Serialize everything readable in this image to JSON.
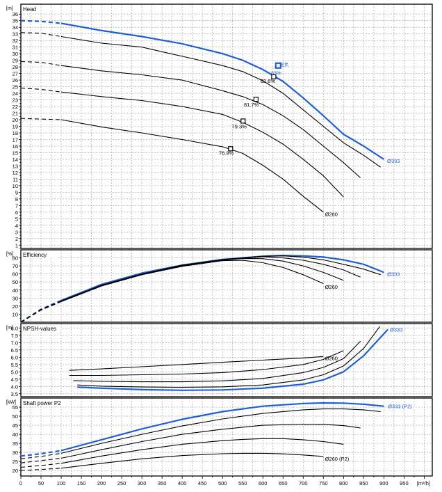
{
  "colors": {
    "highlight": "#1f5fd6",
    "other": "#000000",
    "grid": "#9a9a9a",
    "frame": "#000000"
  },
  "x_axis": {
    "unit": "[m³/h]",
    "min": 0,
    "max": 1020,
    "ticks": [
      0,
      50,
      100,
      150,
      200,
      250,
      300,
      350,
      400,
      450,
      500,
      550,
      600,
      650,
      700,
      750,
      800,
      850,
      900,
      950,
      1000
    ]
  },
  "chart_data": [
    {
      "type": "line",
      "title": "Head",
      "ylabel": "[m]",
      "ylim": [
        0.5,
        37.5
      ],
      "yticks": [
        1,
        2,
        3,
        4,
        5,
        6,
        7,
        8,
        9,
        10,
        11,
        12,
        13,
        14,
        15,
        16,
        17,
        18,
        19,
        20,
        21,
        22,
        23,
        24,
        25,
        26,
        27,
        28,
        29,
        30,
        31,
        32,
        33,
        34,
        35,
        36
      ],
      "grid": true,
      "series": [
        {
          "name": "Ø333",
          "highlight": true,
          "dashed": [
            [
              0,
              35
            ],
            [
              50,
              34.9
            ],
            [
              100,
              34.6
            ]
          ],
          "x": [
            100,
            200,
            300,
            400,
            500,
            550,
            600,
            650,
            700,
            750,
            800,
            850,
            900
          ],
          "y": [
            34.6,
            33.5,
            32.6,
            31.5,
            30,
            29,
            27.6,
            25.8,
            23.3,
            20.6,
            17.8,
            16,
            14
          ]
        },
        {
          "dashed": [
            [
              0,
              33.2
            ],
            [
              50,
              33.1
            ],
            [
              100,
              32.6
            ]
          ],
          "x": [
            100,
            200,
            300,
            400,
            500,
            550,
            600,
            650,
            700,
            750,
            800,
            850,
            892
          ],
          "y": [
            32.6,
            31.6,
            31,
            29.6,
            28.2,
            27.3,
            25.9,
            24,
            21.5,
            19,
            16.5,
            14.6,
            12.8
          ]
        },
        {
          "dashed": [
            [
              0,
              28.8
            ],
            [
              50,
              28.7
            ],
            [
              100,
              28.2
            ]
          ],
          "x": [
            100,
            200,
            300,
            400,
            500,
            550,
            600,
            650,
            700,
            750,
            800,
            842
          ],
          "y": [
            28.2,
            27.4,
            26.8,
            26,
            24.4,
            23.5,
            22.3,
            20.6,
            18.5,
            16,
            13.5,
            11.2
          ]
        },
        {
          "dashed": [
            [
              0,
              24.8
            ],
            [
              50,
              24.6
            ],
            [
              100,
              24.2
            ]
          ],
          "x": [
            100,
            200,
            300,
            400,
            500,
            550,
            600,
            650,
            700,
            750,
            800
          ],
          "y": [
            24.2,
            23.5,
            22.9,
            22,
            20.8,
            19.6,
            18.1,
            16.3,
            14,
            11.5,
            8.3
          ]
        },
        {
          "name": "Ø260",
          "dashed": [
            [
              0,
              20.2
            ],
            [
              50,
              20.1
            ],
            [
              100,
              20
            ]
          ],
          "x": [
            100,
            200,
            300,
            400,
            500,
            550,
            600,
            650,
            700,
            750
          ],
          "y": [
            20,
            18.9,
            18,
            17,
            15.9,
            14.9,
            13.1,
            11,
            8.4,
            6
          ]
        }
      ],
      "markers": [
        {
          "x": 638,
          "y": 28.2,
          "highlight": true
        },
        {
          "x": 627,
          "y": 26.5
        },
        {
          "x": 583,
          "y": 23.1
        },
        {
          "x": 551,
          "y": 19.8
        },
        {
          "x": 520,
          "y": 15.6
        }
      ],
      "annotations": [
        {
          "text": "Eff.",
          "x": 646,
          "y": 28.4,
          "highlight": true
        },
        {
          "text": "83%",
          "x": 620,
          "y": 27.1,
          "highlight": true
        },
        {
          "text": "82.6%",
          "x": 594,
          "y": 25.9
        },
        {
          "text": "81.7%",
          "x": 553,
          "y": 22.3
        },
        {
          "text": "79.3%",
          "x": 523,
          "y": 19
        },
        {
          "text": "76.9%",
          "x": 491,
          "y": 15
        },
        {
          "text": "Ø333",
          "x": 908,
          "y": 13.8,
          "highlight": true
        },
        {
          "text": "Ø260",
          "x": 754,
          "y": 5.7
        }
      ]
    },
    {
      "type": "line",
      "title": "Efficiency",
      "ylabel": "[%]",
      "ylim": [
        0,
        90
      ],
      "yticks": [
        10,
        20,
        30,
        40,
        50,
        60,
        70,
        80
      ],
      "grid": true,
      "series": [
        {
          "name": "Ø333",
          "highlight": true,
          "dashed": [
            [
              0,
              0
            ],
            [
              50,
              16
            ],
            [
              100,
              27
            ]
          ],
          "x": [
            100,
            200,
            300,
            400,
            500,
            600,
            650,
            700,
            750,
            800,
            850,
            900
          ],
          "y": [
            27,
            47,
            61,
            71,
            78,
            82,
            83,
            82.5,
            81,
            77.5,
            72,
            62
          ]
        },
        {
          "dashed": [
            [
              0,
              0
            ],
            [
              50,
              16
            ],
            [
              100,
              26.5
            ]
          ],
          "x": [
            100,
            200,
            300,
            400,
            500,
            600,
            650,
            700,
            750,
            800,
            850,
            892
          ],
          "y": [
            26.5,
            46,
            60,
            71,
            78,
            82,
            82.5,
            81,
            77.5,
            72,
            66,
            59
          ]
        },
        {
          "dashed": [
            [
              0,
              0
            ],
            [
              50,
              15.5
            ],
            [
              100,
              26
            ]
          ],
          "x": [
            100,
            200,
            300,
            400,
            500,
            600,
            650,
            700,
            750,
            800,
            842
          ],
          "y": [
            26,
            45.5,
            59.5,
            70.5,
            77.5,
            81.5,
            80,
            77,
            72,
            65,
            56
          ]
        },
        {
          "dashed": [
            [
              0,
              0
            ],
            [
              50,
              15.5
            ],
            [
              100,
              26
            ]
          ],
          "x": [
            100,
            200,
            300,
            400,
            500,
            550,
            600,
            650,
            700,
            750,
            800
          ],
          "y": [
            26,
            45.5,
            59.5,
            70,
            77,
            79.3,
            79,
            76,
            70,
            62,
            52
          ]
        },
        {
          "name": "Ø260",
          "dashed": [
            [
              0,
              0
            ],
            [
              50,
              15
            ],
            [
              100,
              25.5
            ]
          ],
          "x": [
            100,
            200,
            300,
            400,
            500,
            550,
            600,
            650,
            700,
            750
          ],
          "y": [
            25.5,
            45,
            59,
            69.5,
            76.5,
            76.9,
            74,
            68,
            59,
            48
          ]
        }
      ],
      "annotations": [
        {
          "text": "Ø333",
          "x": 908,
          "y": 60,
          "highlight": true
        },
        {
          "text": "Ø260",
          "x": 754,
          "y": 44
        }
      ]
    },
    {
      "type": "line",
      "title": "NPSH-values",
      "ylabel": "[m]",
      "ylim": [
        3.3,
        8.3
      ],
      "yticks": [
        3.5,
        4.0,
        4.5,
        5.0,
        5.5,
        6.0,
        6.5,
        7.0,
        7.5,
        8.0
      ],
      "grid": true,
      "series": [
        {
          "name": "Ø333",
          "highlight": true,
          "x": [
            140,
            200,
            300,
            400,
            500,
            600,
            700,
            750,
            800,
            850,
            880,
            910
          ],
          "y": [
            3.95,
            3.88,
            3.78,
            3.74,
            3.76,
            3.88,
            4.15,
            4.45,
            5,
            6.1,
            7,
            7.9
          ]
        },
        {
          "x": [
            140,
            200,
            300,
            400,
            500,
            600,
            700,
            750,
            800,
            850,
            890
          ],
          "y": [
            4.1,
            4.02,
            3.96,
            3.94,
            3.97,
            4.1,
            4.45,
            4.8,
            5.4,
            6.6,
            8.1
          ]
        },
        {
          "x": [
            130,
            200,
            300,
            400,
            500,
            600,
            700,
            750,
            800,
            842
          ],
          "y": [
            4.4,
            4.35,
            4.32,
            4.32,
            4.38,
            4.55,
            4.95,
            5.3,
            5.9,
            7.1
          ]
        },
        {
          "x": [
            120,
            200,
            300,
            400,
            500,
            600,
            700,
            750,
            800
          ],
          "y": [
            4.75,
            4.75,
            4.8,
            4.85,
            4.95,
            5.15,
            5.5,
            5.85,
            6.45
          ]
        },
        {
          "name": "Ø260",
          "x": [
            120,
            200,
            300,
            400,
            500,
            600,
            700,
            750
          ],
          "y": [
            5.1,
            5.2,
            5.35,
            5.5,
            5.65,
            5.8,
            5.95,
            6.05
          ]
        }
      ],
      "annotations": [
        {
          "text": "Ø333",
          "x": 915,
          "y": 7.9,
          "highlight": true
        },
        {
          "text": "Ø260",
          "x": 754,
          "y": 5.95
        }
      ]
    },
    {
      "type": "line",
      "title": "Shaft power P2",
      "ylabel": "[kW]",
      "ylim": [
        17,
        60
      ],
      "yticks": [
        20,
        25,
        30,
        35,
        40,
        45,
        50,
        55
      ],
      "grid": true,
      "series": [
        {
          "name": "Ø333 (P2)",
          "highlight": true,
          "dashed": [
            [
              0,
              28
            ],
            [
              50,
              29.3
            ],
            [
              100,
              31
            ]
          ],
          "x": [
            100,
            200,
            300,
            400,
            500,
            600,
            700,
            750,
            800,
            850,
            900
          ],
          "y": [
            31,
            37,
            43,
            48.3,
            52.5,
            55.5,
            57,
            57.3,
            57.2,
            56.6,
            55.5
          ]
        },
        {
          "dashed": [
            [
              0,
              26.5
            ],
            [
              50,
              27.8
            ],
            [
              100,
              29.5
            ]
          ],
          "x": [
            100,
            200,
            300,
            400,
            500,
            600,
            700,
            750,
            800,
            850,
            892
          ],
          "y": [
            29.5,
            35,
            40,
            44.6,
            48.5,
            51.5,
            53.5,
            54,
            54,
            53.5,
            52.5
          ]
        },
        {
          "dashed": [
            [
              0,
              24.2
            ],
            [
              50,
              25.5
            ],
            [
              100,
              26.8
            ]
          ],
          "x": [
            100,
            200,
            300,
            400,
            500,
            600,
            700,
            750,
            800,
            842
          ],
          "y": [
            26.8,
            31.5,
            36,
            40,
            42.8,
            45,
            45.6,
            45.5,
            44.8,
            43.5
          ]
        },
        {
          "dashed": [
            [
              0,
              21.8
            ],
            [
              50,
              22.8
            ],
            [
              100,
              24
            ]
          ],
          "x": [
            100,
            200,
            300,
            400,
            500,
            550,
            600,
            650,
            700,
            750,
            800
          ],
          "y": [
            24,
            28,
            31.5,
            34.5,
            36.5,
            37.2,
            37.6,
            37.6,
            37,
            36,
            34.5
          ]
        },
        {
          "name": "Ø260 (P2)",
          "dashed": [
            [
              0,
              20
            ],
            [
              50,
              20.6
            ],
            [
              100,
              21.3
            ]
          ],
          "x": [
            100,
            200,
            300,
            400,
            500,
            550,
            600,
            650,
            700,
            750
          ],
          "y": [
            21.3,
            24,
            26.5,
            28.3,
            29.3,
            29.5,
            29.5,
            29.2,
            28.6,
            27.8
          ]
        }
      ],
      "annotations": [
        {
          "text": "Ø333 (P2)",
          "x": 910,
          "y": 55.5,
          "highlight": true
        },
        {
          "text": "Ø260 (P2)",
          "x": 754,
          "y": 26.6
        }
      ]
    }
  ]
}
